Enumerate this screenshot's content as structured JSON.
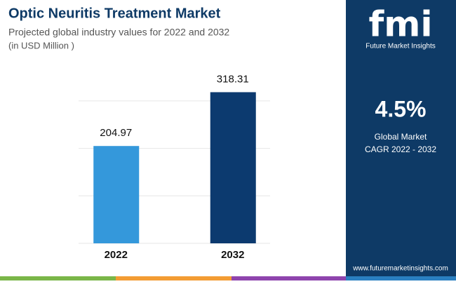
{
  "chart_data": {
    "type": "bar",
    "title": "Optic Neuritis Treatment Market",
    "subtitle": "Projected global industry values for 2022 and 2032",
    "unit_note": "(in USD Million )",
    "categories": [
      "2022",
      "2032"
    ],
    "values": [
      204.97,
      318.31
    ],
    "colors": [
      "#3498db",
      "#0c3a6f"
    ],
    "ylim": [
      0,
      350
    ],
    "yticks": [
      0,
      100,
      200,
      300
    ],
    "grid": true
  },
  "sidebar": {
    "logo": "fmi",
    "brand": "Future Market Insights",
    "cagr": "4.5%",
    "cagr_label_1": "Global Market",
    "cagr_label_2": "CAGR 2022 - 2032",
    "url": "www.futuremarketinsights.com"
  }
}
